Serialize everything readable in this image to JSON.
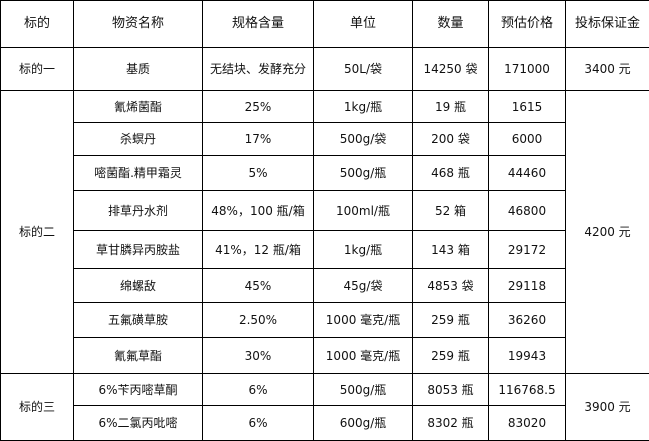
{
  "headers": [
    "标的",
    "物资名称",
    "规格含量",
    "单位",
    "数量",
    "预估价格",
    "投标保证金"
  ],
  "lots": [
    {
      "name": "标的一",
      "deposit": "3400 元",
      "items": [
        {
          "name": "基质",
          "spec": "无结块、发酵充分",
          "unit": "50L/袋",
          "qty": "14250 袋",
          "price": "171000"
        }
      ]
    },
    {
      "name": "标的二",
      "deposit": "4200 元",
      "items": [
        {
          "name": "氰烯菌酯",
          "spec": "25%",
          "unit": "1kg/瓶",
          "qty": "19 瓶",
          "price": "1615"
        },
        {
          "name": "杀螟丹",
          "spec": "17%",
          "unit": "500g/袋",
          "qty": "200 袋",
          "price": "6000"
        },
        {
          "name": "嘧菌酯.精甲霜灵",
          "spec": "5%",
          "unit": "500g/瓶",
          "qty": "468 瓶",
          "price": "44460"
        },
        {
          "name": "排草丹水剂",
          "spec": "48%，100 瓶/箱",
          "unit": "100ml/瓶",
          "qty": "52 箱",
          "price": "46800"
        },
        {
          "name": "草甘膦异丙胺盐",
          "spec": "41%，12 瓶/箱",
          "unit": "1kg/瓶",
          "qty": "143 箱",
          "price": "29172"
        },
        {
          "name": "绵螺敌",
          "spec": "45%",
          "unit": "45g/袋",
          "qty": "4853 袋",
          "price": "29118"
        },
        {
          "name": "五氟磺草胺",
          "spec": "2.50%",
          "unit": "1000 毫克/瓶",
          "qty": "259 瓶",
          "price": "36260"
        },
        {
          "name": "氰氟草酯",
          "spec": "30%",
          "unit": "1000 毫克/瓶",
          "qty": "259 瓶",
          "price": "19943"
        }
      ]
    },
    {
      "name": "标的三",
      "deposit": "3900 元",
      "items": [
        {
          "name": "6%苄丙嘧草酮",
          "spec": "6%",
          "unit": "500g/瓶",
          "qty": "8053 瓶",
          "price": "116768.5"
        },
        {
          "name": "6%二氯丙吡嘧",
          "spec": "6%",
          "unit": "600g/瓶",
          "qty": "8302 瓶",
          "price": "83020"
        }
      ]
    }
  ]
}
